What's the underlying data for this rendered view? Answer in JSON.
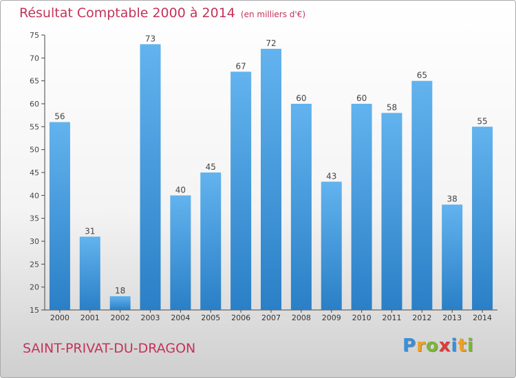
{
  "title": {
    "main": "Résultat Comptable 2000 à 2014",
    "unit": "(en milliers d'€)"
  },
  "town": "SAINT-PRIVAT-DU-DRAGON",
  "logo": {
    "letters": [
      {
        "ch": "P",
        "color": "#3a8fd8"
      },
      {
        "ch": "r",
        "color": "#f0a020"
      },
      {
        "ch": "o",
        "color": "#7ab830"
      },
      {
        "ch": "x",
        "color": "#e03a3a"
      },
      {
        "ch": "i",
        "color": "#3a8fd8"
      },
      {
        "ch": "t",
        "color": "#f0a020"
      },
      {
        "ch": "i",
        "color": "#7ab830"
      }
    ]
  },
  "colors": {
    "bar_light": "#62b3ee",
    "bar_dark": "#2a7fc6",
    "accent": "#c4325a"
  },
  "chart_data": {
    "type": "bar",
    "title": "Résultat Comptable 2000 à 2014",
    "subtitle": "(en milliers d'€)",
    "categories": [
      "2000",
      "2001",
      "2002",
      "2003",
      "2004",
      "2005",
      "2006",
      "2007",
      "2008",
      "2009",
      "2010",
      "2011",
      "2012",
      "2013",
      "2014"
    ],
    "values": [
      56,
      31,
      18,
      73,
      40,
      45,
      67,
      72,
      60,
      43,
      60,
      58,
      65,
      38,
      55
    ],
    "ylim": [
      15,
      75
    ],
    "yticks": [
      15,
      20,
      25,
      30,
      35,
      40,
      45,
      50,
      55,
      60,
      65,
      70,
      75
    ],
    "grid": false,
    "data_labels": true
  }
}
